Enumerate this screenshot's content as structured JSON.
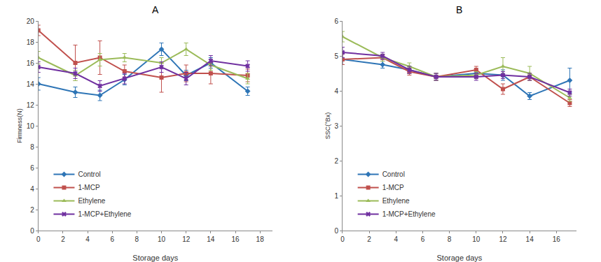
{
  "chart_data": [
    {
      "type": "line",
      "title": "A",
      "xlabel": "Storage days",
      "ylabel": "Firmness(N)",
      "x": [
        0,
        3,
        5,
        7,
        10,
        12,
        14,
        17
      ],
      "xlim": [
        0,
        19
      ],
      "xticks": [
        0,
        2,
        4,
        6,
        8,
        10,
        12,
        14,
        16,
        18
      ],
      "ylim": [
        0,
        20
      ],
      "yticks": [
        0,
        2,
        4,
        6,
        8,
        10,
        12,
        14,
        16,
        18,
        20
      ],
      "grid": false,
      "legend": "lower left",
      "series": [
        {
          "name": "Control",
          "color": "#2e75b6",
          "marker": "diamond",
          "values": [
            14,
            13.2,
            12.9,
            14.4,
            17.3,
            14.8,
            16,
            13.3
          ],
          "errors": [
            0.6,
            0.5,
            0.5,
            0.5,
            0.6,
            0.5,
            0.5,
            0.4
          ]
        },
        {
          "name": "1-MCP",
          "color": "#c0504d",
          "marker": "square",
          "values": [
            19.1,
            16,
            16.5,
            15.2,
            14.6,
            15,
            15,
            14.8
          ],
          "errors": [
            0.5,
            1.7,
            1.6,
            0.6,
            1.4,
            0.8,
            1.0,
            0.6
          ]
        },
        {
          "name": "Ethylene",
          "color": "#9bbb59",
          "marker": "triangle-up",
          "values": [
            16.5,
            14.8,
            16.3,
            16.5,
            16,
            17.3,
            15.8,
            14.5
          ],
          "errors": [
            0.6,
            0.5,
            0.6,
            0.4,
            0.5,
            0.6,
            0.5,
            0.5
          ]
        },
        {
          "name": "1-MCP+Ethylene",
          "color": "#7030a0",
          "marker": "x",
          "values": [
            15.6,
            15,
            13.8,
            14.5,
            15.6,
            14.5,
            16.2,
            15.7
          ],
          "errors": [
            0.5,
            0.5,
            0.5,
            0.5,
            0.5,
            0.6,
            0.5,
            0.5
          ]
        }
      ]
    },
    {
      "type": "line",
      "title": "B",
      "xlabel": "Storage days",
      "ylabel": "SSC(°Bx)",
      "x": [
        0,
        3,
        5,
        7,
        10,
        12,
        14,
        17
      ],
      "xlim": [
        0,
        17.5
      ],
      "xticks": [
        0,
        2,
        4,
        6,
        8,
        10,
        12,
        14,
        16
      ],
      "ylim": [
        0,
        6
      ],
      "yticks": [
        0,
        1,
        2,
        3,
        4,
        5,
        6
      ],
      "grid": false,
      "legend": "lower left",
      "series": [
        {
          "name": "Control",
          "color": "#2e75b6",
          "marker": "diamond",
          "values": [
            4.9,
            4.75,
            4.6,
            4.4,
            4.5,
            4.45,
            3.85,
            4.3
          ],
          "errors": [
            0.15,
            0.1,
            0.1,
            0.1,
            0.1,
            0.15,
            0.1,
            0.35
          ]
        },
        {
          "name": "1-MCP",
          "color": "#c0504d",
          "marker": "square",
          "values": [
            4.9,
            4.95,
            4.55,
            4.4,
            4.6,
            4.05,
            4.4,
            3.65
          ],
          "errors": [
            0.15,
            0.1,
            0.1,
            0.1,
            0.1,
            0.15,
            0.1,
            0.1
          ]
        },
        {
          "name": "Ethylene",
          "color": "#9bbb59",
          "marker": "triangle-up",
          "values": [
            5.55,
            4.95,
            4.7,
            4.4,
            4.45,
            4.7,
            4.5,
            3.8
          ],
          "errors": [
            0.15,
            0.1,
            0.1,
            0.1,
            0.1,
            0.25,
            0.2,
            0.1
          ]
        },
        {
          "name": "1-MCP+Ethylene",
          "color": "#7030a0",
          "marker": "x",
          "values": [
            5.1,
            5.0,
            4.6,
            4.4,
            4.4,
            4.45,
            4.4,
            3.95
          ],
          "errors": [
            0.15,
            0.1,
            0.1,
            0.1,
            0.1,
            0.1,
            0.1,
            0.1
          ]
        }
      ]
    }
  ]
}
